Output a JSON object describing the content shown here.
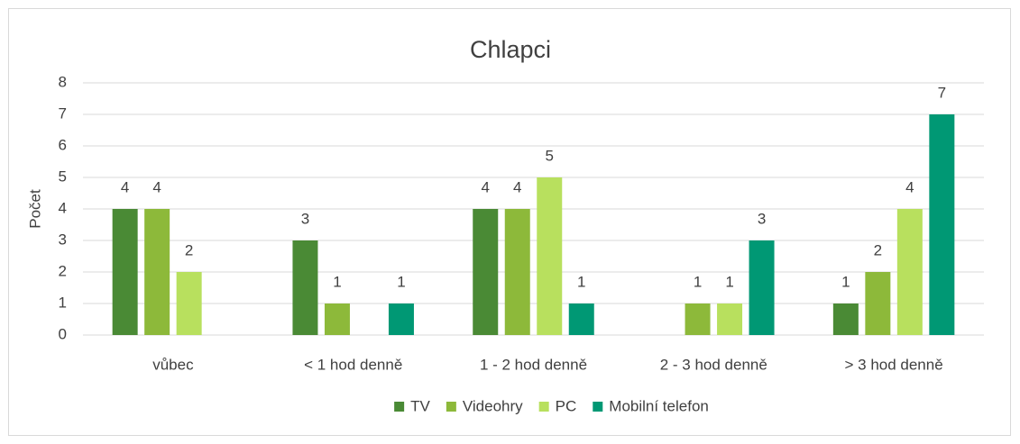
{
  "chart_data": {
    "type": "bar",
    "title": "Chlapci",
    "y_label": "Počet",
    "categories": [
      "vůbec",
      "< 1 hod denně",
      "1 - 2 hod denně",
      "2 - 3 hod denně",
      "> 3 hod denně"
    ],
    "series": [
      {
        "name": "TV",
        "color": "#4a8a35",
        "values": [
          4,
          3,
          4,
          0,
          1
        ]
      },
      {
        "name": "Videohry",
        "color": "#8db93a",
        "values": [
          4,
          1,
          4,
          1,
          2
        ]
      },
      {
        "name": "PC",
        "color": "#b8e05e",
        "values": [
          2,
          0,
          5,
          1,
          4
        ]
      },
      {
        "name": "Mobilní telefon",
        "color": "#009874",
        "values": [
          0,
          1,
          1,
          3,
          7
        ]
      }
    ],
    "ylim": [
      0,
      8
    ],
    "yticks": [
      0,
      1,
      2,
      3,
      4,
      5,
      6,
      7,
      8
    ],
    "grid": true,
    "legend": "bottom"
  }
}
